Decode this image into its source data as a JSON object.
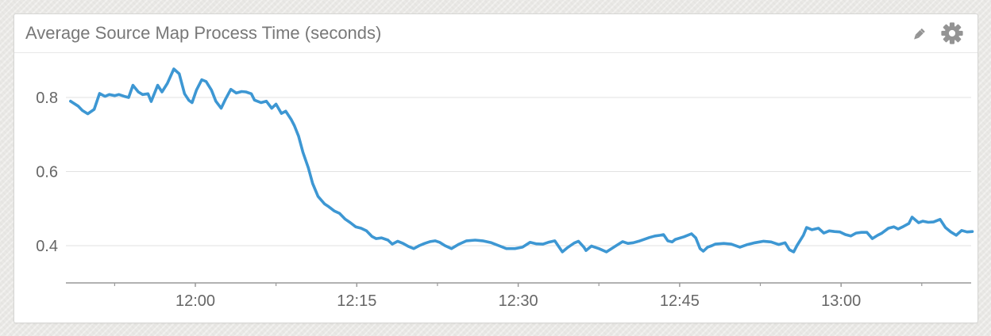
{
  "widget": {
    "title": "Average Source Map Process Time (seconds)",
    "actions": [
      {
        "name": "edit",
        "icon": "pencil-icon"
      },
      {
        "name": "settings",
        "icon": "gear-icon"
      }
    ]
  },
  "colors": {
    "page_bg": "#e9e8e5",
    "card_bg": "#ffffff",
    "card_border": "#d6d6d4",
    "title_text": "#787878",
    "icon": "#949494",
    "line": "#3d97d3",
    "grid": "#e2e2e2",
    "axis": "#999999",
    "tick_label": "#666666"
  },
  "chart_data": {
    "type": "line",
    "title": "Average Source Map Process Time (seconds)",
    "xlabel": "",
    "ylabel": "",
    "legend": "none",
    "grid": "horizontal-only",
    "x_axis": {
      "unit": "time (HH:MM), x stored as minutes after 12:00",
      "range_minutes": [
        -12,
        72
      ],
      "range_labels": [
        "11:48",
        "13:12"
      ],
      "major_ticks": [
        {
          "label": "12:00",
          "m": 0
        },
        {
          "label": "12:15",
          "m": 15
        },
        {
          "label": "12:30",
          "m": 30
        },
        {
          "label": "12:45",
          "m": 45
        },
        {
          "label": "13:00",
          "m": 60
        }
      ],
      "minor_ticks_m": [
        -7.5,
        7.5,
        22.5,
        37.5,
        52.5,
        67.5
      ]
    },
    "y_axis": {
      "unit": "seconds",
      "tick_labels": [
        "0.8",
        "0.6",
        "0.4"
      ],
      "tick_values": [
        0.8,
        0.6,
        0.4
      ],
      "range": [
        0.3,
        0.91
      ]
    },
    "series": [
      {
        "name": "Average source map process time",
        "unit": "seconds",
        "points": [
          [
            -11.6,
            0.79
          ],
          [
            -10.9,
            0.777
          ],
          [
            -10.5,
            0.765
          ],
          [
            -10.0,
            0.756
          ],
          [
            -9.4,
            0.768
          ],
          [
            -8.9,
            0.811
          ],
          [
            -8.4,
            0.803
          ],
          [
            -8.0,
            0.808
          ],
          [
            -7.5,
            0.805
          ],
          [
            -7.1,
            0.808
          ],
          [
            -6.6,
            0.803
          ],
          [
            -6.2,
            0.8
          ],
          [
            -5.8,
            0.833
          ],
          [
            -5.3,
            0.815
          ],
          [
            -4.9,
            0.808
          ],
          [
            -4.4,
            0.81
          ],
          [
            -4.1,
            0.789
          ],
          [
            -3.5,
            0.833
          ],
          [
            -3.1,
            0.815
          ],
          [
            -2.6,
            0.838
          ],
          [
            -2.0,
            0.877
          ],
          [
            -1.5,
            0.864
          ],
          [
            -1.0,
            0.81
          ],
          [
            -0.6,
            0.792
          ],
          [
            -0.3,
            0.786
          ],
          [
            0.1,
            0.82
          ],
          [
            0.6,
            0.848
          ],
          [
            1.0,
            0.843
          ],
          [
            1.5,
            0.82
          ],
          [
            1.9,
            0.79
          ],
          [
            2.4,
            0.771
          ],
          [
            2.8,
            0.795
          ],
          [
            3.3,
            0.822
          ],
          [
            3.8,
            0.812
          ],
          [
            4.3,
            0.816
          ],
          [
            4.7,
            0.815
          ],
          [
            5.2,
            0.81
          ],
          [
            5.5,
            0.793
          ],
          [
            6.1,
            0.786
          ],
          [
            6.6,
            0.79
          ],
          [
            7.1,
            0.771
          ],
          [
            7.5,
            0.782
          ],
          [
            8.0,
            0.757
          ],
          [
            8.4,
            0.763
          ],
          [
            8.9,
            0.741
          ],
          [
            9.2,
            0.724
          ],
          [
            9.6,
            0.695
          ],
          [
            10.0,
            0.652
          ],
          [
            10.5,
            0.61
          ],
          [
            10.9,
            0.568
          ],
          [
            11.4,
            0.533
          ],
          [
            12.0,
            0.513
          ],
          [
            12.4,
            0.505
          ],
          [
            12.9,
            0.494
          ],
          [
            13.4,
            0.487
          ],
          [
            13.9,
            0.472
          ],
          [
            14.4,
            0.462
          ],
          [
            14.9,
            0.451
          ],
          [
            15.4,
            0.447
          ],
          [
            15.9,
            0.44
          ],
          [
            16.4,
            0.425
          ],
          [
            16.8,
            0.419
          ],
          [
            17.3,
            0.421
          ],
          [
            17.9,
            0.415
          ],
          [
            18.3,
            0.404
          ],
          [
            18.8,
            0.412
          ],
          [
            19.3,
            0.406
          ],
          [
            19.8,
            0.398
          ],
          [
            20.3,
            0.392
          ],
          [
            20.8,
            0.4
          ],
          [
            21.3,
            0.406
          ],
          [
            21.8,
            0.411
          ],
          [
            22.3,
            0.413
          ],
          [
            22.7,
            0.409
          ],
          [
            23.2,
            0.4
          ],
          [
            23.8,
            0.392
          ],
          [
            24.5,
            0.404
          ],
          [
            25.2,
            0.413
          ],
          [
            26.0,
            0.415
          ],
          [
            26.7,
            0.413
          ],
          [
            27.5,
            0.408
          ],
          [
            28.2,
            0.4
          ],
          [
            28.9,
            0.392
          ],
          [
            29.7,
            0.392
          ],
          [
            30.4,
            0.396
          ],
          [
            31.1,
            0.409
          ],
          [
            31.7,
            0.405
          ],
          [
            32.3,
            0.404
          ],
          [
            32.8,
            0.409
          ],
          [
            33.4,
            0.413
          ],
          [
            34.1,
            0.383
          ],
          [
            34.6,
            0.395
          ],
          [
            35.2,
            0.407
          ],
          [
            35.6,
            0.412
          ],
          [
            36.1,
            0.396
          ],
          [
            36.3,
            0.387
          ],
          [
            36.8,
            0.399
          ],
          [
            37.5,
            0.392
          ],
          [
            38.2,
            0.383
          ],
          [
            39.0,
            0.398
          ],
          [
            39.7,
            0.411
          ],
          [
            40.2,
            0.406
          ],
          [
            40.7,
            0.408
          ],
          [
            41.2,
            0.412
          ],
          [
            41.7,
            0.417
          ],
          [
            42.2,
            0.422
          ],
          [
            42.7,
            0.426
          ],
          [
            43.2,
            0.428
          ],
          [
            43.5,
            0.43
          ],
          [
            43.9,
            0.413
          ],
          [
            44.3,
            0.41
          ],
          [
            44.6,
            0.417
          ],
          [
            45.4,
            0.424
          ],
          [
            46.1,
            0.432
          ],
          [
            46.5,
            0.421
          ],
          [
            46.9,
            0.392
          ],
          [
            47.2,
            0.385
          ],
          [
            47.6,
            0.396
          ],
          [
            48.0,
            0.4
          ],
          [
            48.3,
            0.404
          ],
          [
            49.1,
            0.406
          ],
          [
            49.8,
            0.404
          ],
          [
            50.6,
            0.396
          ],
          [
            51.3,
            0.403
          ],
          [
            52.0,
            0.408
          ],
          [
            52.8,
            0.412
          ],
          [
            53.5,
            0.41
          ],
          [
            54.2,
            0.403
          ],
          [
            54.8,
            0.408
          ],
          [
            55.2,
            0.389
          ],
          [
            55.6,
            0.383
          ],
          [
            55.9,
            0.4
          ],
          [
            56.5,
            0.428
          ],
          [
            56.8,
            0.449
          ],
          [
            57.3,
            0.443
          ],
          [
            57.9,
            0.447
          ],
          [
            58.4,
            0.434
          ],
          [
            58.9,
            0.44
          ],
          [
            59.4,
            0.438
          ],
          [
            59.9,
            0.437
          ],
          [
            60.4,
            0.43
          ],
          [
            60.9,
            0.426
          ],
          [
            61.4,
            0.434
          ],
          [
            61.9,
            0.436
          ],
          [
            62.4,
            0.436
          ],
          [
            62.9,
            0.419
          ],
          [
            63.4,
            0.428
          ],
          [
            63.8,
            0.434
          ],
          [
            64.4,
            0.447
          ],
          [
            64.9,
            0.451
          ],
          [
            65.3,
            0.445
          ],
          [
            65.8,
            0.452
          ],
          [
            66.3,
            0.46
          ],
          [
            66.6,
            0.477
          ],
          [
            67.2,
            0.462
          ],
          [
            67.6,
            0.466
          ],
          [
            68.1,
            0.463
          ],
          [
            68.6,
            0.464
          ],
          [
            69.2,
            0.471
          ],
          [
            69.7,
            0.449
          ],
          [
            70.2,
            0.437
          ],
          [
            70.7,
            0.428
          ],
          [
            71.2,
            0.441
          ],
          [
            71.7,
            0.437
          ],
          [
            72.2,
            0.438
          ]
        ]
      }
    ]
  }
}
